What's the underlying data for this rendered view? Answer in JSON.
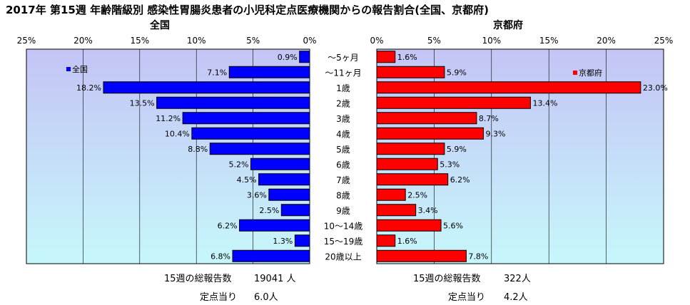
{
  "title": "2017年 第15週 年齢階級別 感染性胃腸炎患者の小児科定点医療機関からの報告割合(全国、京都府)",
  "colors": {
    "left_bar": "#0000ff",
    "right_bar": "#ff0000",
    "plot_top": "#c4c4f5",
    "plot_bottom": "#c6f7fb",
    "border": "#000000"
  },
  "chart_data": {
    "type": "bar",
    "orientation": "horizontal-butterfly",
    "categories": [
      "～5ヶ月",
      "～11ヶ月",
      "1歳",
      "2歳",
      "3歳",
      "4歳",
      "5歳",
      "6歳",
      "7歳",
      "8歳",
      "9歳",
      "10～14歳",
      "15～19歳",
      "20歳以上"
    ],
    "panels": [
      {
        "name": "全国",
        "legend": "全国",
        "values": [
          0.9,
          7.1,
          18.2,
          13.5,
          11.2,
          10.4,
          8.8,
          5.2,
          4.5,
          3.6,
          2.5,
          6.2,
          1.3,
          6.8
        ],
        "labels": [
          "0.9%",
          "7.1%",
          "18.2%",
          "13.5%",
          "11.2%",
          "10.4%",
          "8.8%",
          "5.2%",
          "4.5%",
          "3.6%",
          "2.5%",
          "6.2%",
          "1.3%",
          "6.8%"
        ]
      },
      {
        "name": "京都府",
        "legend": "京都府",
        "values": [
          1.6,
          5.9,
          23.0,
          13.4,
          8.7,
          9.3,
          5.9,
          5.3,
          6.2,
          2.5,
          3.4,
          5.6,
          1.6,
          7.8
        ],
        "labels": [
          "1.6%",
          "5.9%",
          "23.0%",
          "13.4%",
          "8.7%",
          "9.3%",
          "5.9%",
          "5.3%",
          "6.2%",
          "2.5%",
          "3.4%",
          "5.6%",
          "1.6%",
          "7.8%"
        ]
      }
    ],
    "xlim": [
      0,
      25
    ],
    "left_ticks": [
      "25%",
      "20%",
      "15%",
      "10%",
      "5%",
      "0%"
    ],
    "right_ticks": [
      "0%",
      "5%",
      "10%",
      "15%",
      "20%",
      "25%"
    ],
    "grid": true
  },
  "stats": {
    "left_total_label": "15週の総報告数",
    "left_total_value": "19041 人",
    "left_per_label": "定点当り",
    "left_per_value": "6.0人",
    "right_total_label": "15週の総報告数",
    "right_total_value": "322人",
    "right_per_label": "定点当り",
    "right_per_value": "4.2人"
  }
}
